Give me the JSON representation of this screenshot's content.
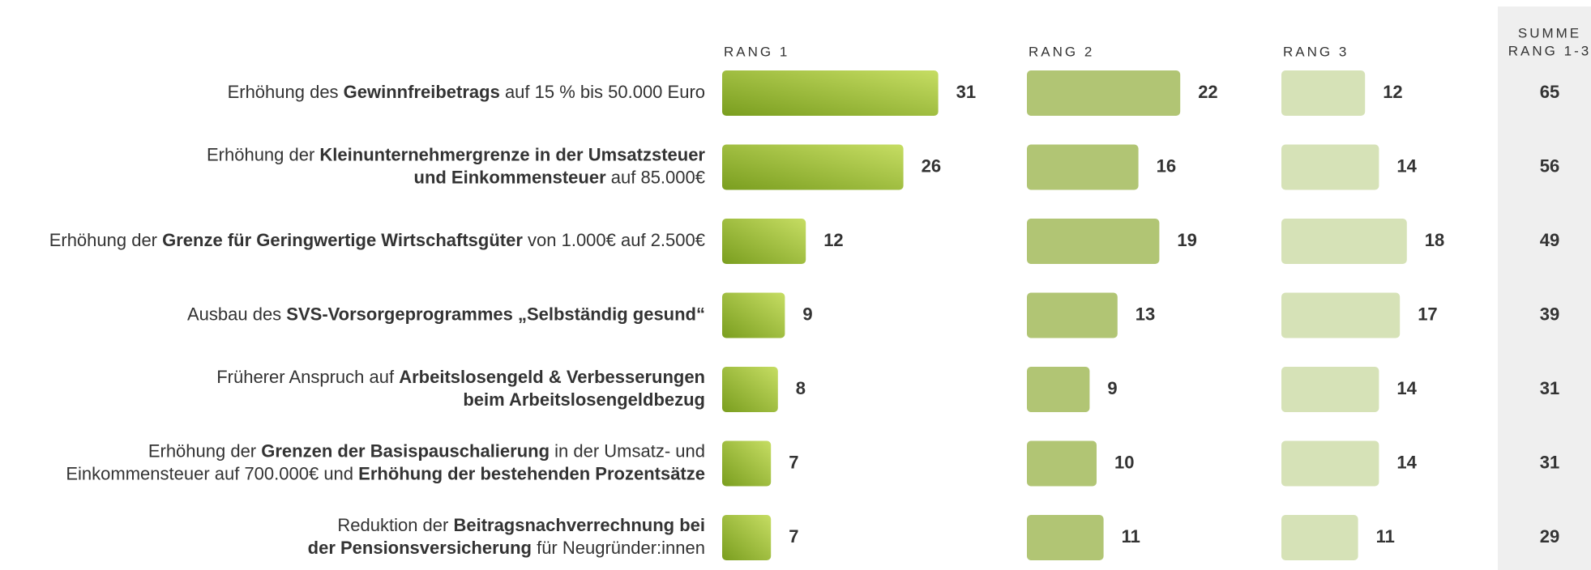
{
  "chart_data": {
    "type": "bar",
    "categories": [
      [
        [
          {
            "text": "Erhöhung des ",
            "b": false
          },
          {
            "text": "Gewinnfreibetrags",
            "b": true
          },
          {
            "text": " auf 15 % bis 50.000 Euro",
            "b": false
          }
        ]
      ],
      [
        [
          {
            "text": "Erhöhung der ",
            "b": false
          },
          {
            "text": "Kleinunternehmergrenze in der Umsatzsteuer",
            "b": true
          }
        ],
        [
          {
            "text": "und Einkommensteuer",
            "b": true
          },
          {
            "text": " auf 85.000€",
            "b": false
          }
        ]
      ],
      [
        [
          {
            "text": "Erhöhung der ",
            "b": false
          },
          {
            "text": "Grenze für Geringwertige Wirtschaftsgüter",
            "b": true
          },
          {
            "text": " von 1.000€ auf 2.500€",
            "b": false
          }
        ]
      ],
      [
        [
          {
            "text": "Ausbau des ",
            "b": false
          },
          {
            "text": "SVS-Vorsorgeprogrammes „Selbständig gesund“",
            "b": true
          }
        ]
      ],
      [
        [
          {
            "text": "Früherer Anspruch auf ",
            "b": false
          },
          {
            "text": "Arbeitslosengeld & Verbesserungen",
            "b": true
          }
        ],
        [
          {
            "text": "beim Arbeitslosengeldbezug",
            "b": true
          }
        ]
      ],
      [
        [
          {
            "text": "Erhöhung der ",
            "b": false
          },
          {
            "text": "Grenzen der Basispauschalierung",
            "b": true
          },
          {
            "text": " in der Umsatz- und",
            "b": false
          }
        ],
        [
          {
            "text": "Einkommensteuer auf 700.000€ und ",
            "b": false
          },
          {
            "text": "Erhöhung der bestehenden Prozentsätze",
            "b": true
          }
        ]
      ],
      [
        [
          {
            "text": "Reduktion der ",
            "b": false
          },
          {
            "text": "Beitragsnachverrechnung bei",
            "b": true
          }
        ],
        [
          {
            "text": "der Pensionsversicherung",
            "b": true
          },
          {
            "text": " für Neugründer:innen",
            "b": false
          }
        ]
      ]
    ],
    "series": [
      {
        "name": "RANG 1",
        "color": [
          "#7a9e1f",
          "#c6dd63"
        ],
        "values": [
          31,
          26,
          12,
          9,
          8,
          7,
          7
        ]
      },
      {
        "name": "RANG 2",
        "color": "#b1c574",
        "values": [
          22,
          16,
          19,
          13,
          9,
          10,
          11
        ]
      },
      {
        "name": "RANG 3",
        "color": "#d6e2b7",
        "values": [
          12,
          14,
          18,
          17,
          14,
          14,
          11
        ]
      }
    ],
    "totals_header": [
      "SUMME",
      "RANG 1-3"
    ],
    "totals": [
      65,
      56,
      49,
      39,
      31,
      31,
      29
    ],
    "totals_background": "#efefef"
  }
}
